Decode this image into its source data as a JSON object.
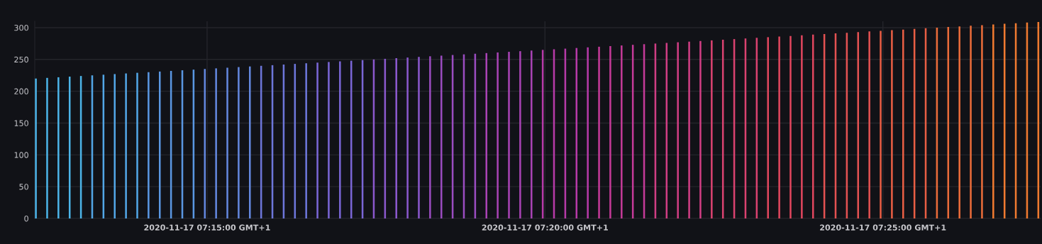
{
  "chart_data": {
    "type": "bar",
    "x": [
      "2020-11-17T07:12:28",
      "2020-11-17T07:12:38",
      "2020-11-17T07:12:48",
      "2020-11-17T07:12:58",
      "2020-11-17T07:13:08",
      "2020-11-17T07:13:18",
      "2020-11-17T07:13:28",
      "2020-11-17T07:13:38",
      "2020-11-17T07:13:48",
      "2020-11-17T07:13:58",
      "2020-11-17T07:14:08",
      "2020-11-17T07:14:18",
      "2020-11-17T07:14:28",
      "2020-11-17T07:14:38",
      "2020-11-17T07:14:48",
      "2020-11-17T07:14:58",
      "2020-11-17T07:15:08",
      "2020-11-17T07:15:18",
      "2020-11-17T07:15:28",
      "2020-11-17T07:15:38",
      "2020-11-17T07:15:48",
      "2020-11-17T07:15:58",
      "2020-11-17T07:16:08",
      "2020-11-17T07:16:18",
      "2020-11-17T07:16:28",
      "2020-11-17T07:16:38",
      "2020-11-17T07:16:48",
      "2020-11-17T07:16:58",
      "2020-11-17T07:17:08",
      "2020-11-17T07:17:18",
      "2020-11-17T07:17:28",
      "2020-11-17T07:17:38",
      "2020-11-17T07:17:48",
      "2020-11-17T07:17:58",
      "2020-11-17T07:18:08",
      "2020-11-17T07:18:18",
      "2020-11-17T07:18:28",
      "2020-11-17T07:18:38",
      "2020-11-17T07:18:48",
      "2020-11-17T07:18:58",
      "2020-11-17T07:19:08",
      "2020-11-17T07:19:18",
      "2020-11-17T07:19:28",
      "2020-11-17T07:19:38",
      "2020-11-17T07:19:48",
      "2020-11-17T07:19:58",
      "2020-11-17T07:20:08",
      "2020-11-17T07:20:18",
      "2020-11-17T07:20:28",
      "2020-11-17T07:20:38",
      "2020-11-17T07:20:48",
      "2020-11-17T07:20:58",
      "2020-11-17T07:21:08",
      "2020-11-17T07:21:18",
      "2020-11-17T07:21:28",
      "2020-11-17T07:21:38",
      "2020-11-17T07:21:48",
      "2020-11-17T07:21:58",
      "2020-11-17T07:22:08",
      "2020-11-17T07:22:18",
      "2020-11-17T07:22:28",
      "2020-11-17T07:22:38",
      "2020-11-17T07:22:48",
      "2020-11-17T07:22:58",
      "2020-11-17T07:23:08",
      "2020-11-17T07:23:18",
      "2020-11-17T07:23:28",
      "2020-11-17T07:23:38",
      "2020-11-17T07:23:48",
      "2020-11-17T07:23:58",
      "2020-11-17T07:24:08",
      "2020-11-17T07:24:18",
      "2020-11-17T07:24:28",
      "2020-11-17T07:24:38",
      "2020-11-17T07:24:48",
      "2020-11-17T07:24:58",
      "2020-11-17T07:25:08",
      "2020-11-17T07:25:18",
      "2020-11-17T07:25:28",
      "2020-11-17T07:25:38",
      "2020-11-17T07:25:48",
      "2020-11-17T07:25:58",
      "2020-11-17T07:26:08",
      "2020-11-17T07:26:18",
      "2020-11-17T07:26:28",
      "2020-11-17T07:26:38",
      "2020-11-17T07:26:48",
      "2020-11-17T07:26:58",
      "2020-11-17T07:27:08",
      "2020-11-17T07:27:18"
    ],
    "values": [
      220,
      221,
      222,
      223,
      224,
      225,
      226,
      227,
      228,
      229,
      230,
      231,
      232,
      233,
      234,
      235,
      236,
      237,
      238,
      239,
      240,
      241,
      242,
      243,
      244,
      245,
      246,
      247,
      248,
      249,
      250,
      251,
      252,
      253,
      254,
      255,
      256,
      257,
      258,
      259,
      260,
      261,
      262,
      263,
      264,
      265,
      266,
      267,
      268,
      269,
      270,
      271,
      272,
      273,
      274,
      275,
      276,
      277,
      278,
      279,
      280,
      281,
      282,
      283,
      284,
      285,
      286,
      287,
      288,
      289,
      290,
      291,
      292,
      293,
      294,
      295,
      296,
      297,
      298,
      299,
      300,
      301,
      302,
      303,
      304,
      305,
      306,
      307,
      308,
      309
    ],
    "colors": [
      "#4cb4e8",
      "#4cb4e8",
      "#4cb4e8",
      "#4cb4e8",
      "#4cb4e8",
      "#52a6e6",
      "#52a6e6",
      "#52a6e6",
      "#52a6e6",
      "#52a6e6",
      "#5a97e2",
      "#5a97e2",
      "#5a97e2",
      "#5a97e2",
      "#5a97e2",
      "#6387de",
      "#6387de",
      "#6387de",
      "#6387de",
      "#6387de",
      "#6d76da",
      "#6d76da",
      "#6d76da",
      "#6d76da",
      "#6d76da",
      "#7a66d6",
      "#7a66d6",
      "#7a66d6",
      "#7a66d6",
      "#7a66d6",
      "#8a58cc",
      "#8a58cc",
      "#8a58cc",
      "#8a58cc",
      "#8a58cc",
      "#9a4cc0",
      "#9a4cc0",
      "#9a4cc0",
      "#9a4cc0",
      "#9a4cc0",
      "#a843b4",
      "#a843b4",
      "#a843b4",
      "#a843b4",
      "#a843b4",
      "#b63aa8",
      "#b63aa8",
      "#b63aa8",
      "#b63aa8",
      "#b63aa8",
      "#c43a98",
      "#c43a98",
      "#c43a98",
      "#c43a98",
      "#c43a98",
      "#d03e84",
      "#d03e84",
      "#d03e84",
      "#d03e84",
      "#d03e84",
      "#da4270",
      "#da4270",
      "#da4270",
      "#da4270",
      "#da4270",
      "#e0465e",
      "#e0465e",
      "#e0465e",
      "#e0465e",
      "#e0465e",
      "#e45252",
      "#e45252",
      "#e45252",
      "#e45252",
      "#e45252",
      "#e85e44",
      "#e85e44",
      "#e85e44",
      "#e85e44",
      "#e85e44",
      "#eb6c3a",
      "#eb6c3a",
      "#eb6c3a",
      "#eb6c3a",
      "#eb6c3a",
      "#ef7a30",
      "#ef7a30",
      "#ef7a30",
      "#ef7a30",
      "#ef7a30"
    ],
    "xlim": [
      "2020-11-17T07:12:27",
      "2020-11-17T07:27:20"
    ],
    "xticks": [
      {
        "value": "2020-11-17T07:15:00",
        "label": "2020-11-17 07:15:00 GMT+1"
      },
      {
        "value": "2020-11-17T07:20:00",
        "label": "2020-11-17 07:20:00 GMT+1"
      },
      {
        "value": "2020-11-17T07:25:00",
        "label": "2020-11-17 07:25:00 GMT+1"
      }
    ],
    "ylim": [
      0,
      310
    ],
    "yticks": [
      0,
      50,
      100,
      150,
      200,
      250,
      300
    ],
    "grid": true
  }
}
